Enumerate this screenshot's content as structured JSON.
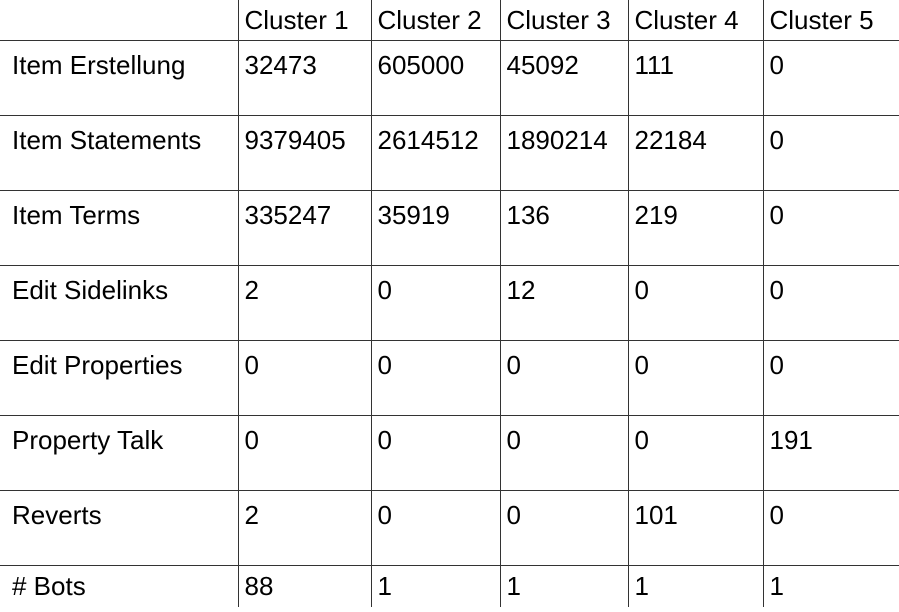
{
  "chart_data": {
    "type": "table",
    "columns": [
      "",
      "Cluster 1",
      "Cluster 2",
      "Cluster 3",
      "Cluster 4",
      "Cluster 5"
    ],
    "rows": [
      {
        "label": "Item Erstellung",
        "values": [
          32473,
          605000,
          45092,
          111,
          0
        ]
      },
      {
        "label": "Item Statements",
        "values": [
          9379405,
          2614512,
          1890214,
          22184,
          0
        ]
      },
      {
        "label": "Item Terms",
        "values": [
          335247,
          35919,
          136,
          219,
          0
        ]
      },
      {
        "label": "Edit Sidelinks",
        "values": [
          2,
          0,
          12,
          0,
          0
        ]
      },
      {
        "label": "Edit Properties",
        "values": [
          0,
          0,
          0,
          0,
          0
        ]
      },
      {
        "label": "Property Talk",
        "values": [
          0,
          0,
          0,
          0,
          191
        ]
      },
      {
        "label": "Reverts",
        "values": [
          2,
          0,
          0,
          101,
          0
        ]
      },
      {
        "label": "# Bots",
        "values": [
          88,
          1,
          1,
          1,
          1
        ]
      }
    ]
  }
}
